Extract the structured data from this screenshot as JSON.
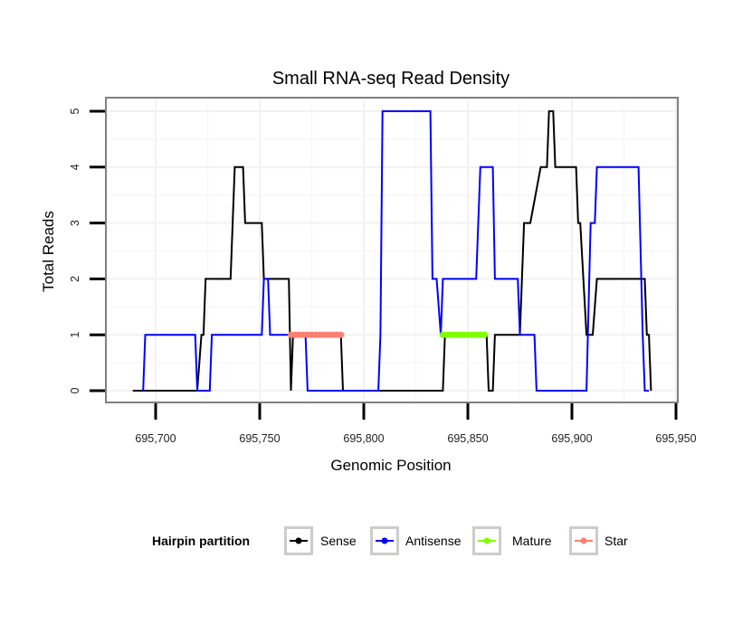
{
  "chart_data": {
    "type": "line",
    "title": "Small RNA-seq Read Density",
    "xlabel": "Genomic Position",
    "ylabel": "Total Reads",
    "xlim": [
      695650,
      695950
    ],
    "ylim": [
      -0.2,
      5.2
    ],
    "x_ticks": [
      695700,
      695750,
      695800,
      695850,
      695900,
      695950
    ],
    "x_tick_labels": [
      "695,700",
      "695,750",
      "695,800",
      "695,850",
      "695,900",
      "695,950"
    ],
    "y_ticks": [
      0,
      1,
      2,
      3,
      4,
      5
    ],
    "y_tick_labels": [
      "0",
      "1",
      "2",
      "3",
      "4",
      "5"
    ],
    "grid": true,
    "legend": {
      "title": "Hairpin partition",
      "placement": "bottom",
      "entries": [
        {
          "name": "Sense",
          "color": "#000000"
        },
        {
          "name": "Antisense",
          "color": "#0000ff"
        },
        {
          "name": "Mature",
          "color": "#7fff00"
        },
        {
          "name": "Star",
          "color": "#fa8072"
        }
      ]
    },
    "series": [
      {
        "name": "Sense",
        "color": "#000000",
        "style": "line",
        "x": [
          695689,
          695720,
          695722,
          695723,
          695724,
          695736,
          695738,
          695742,
          695743,
          695751,
          695752,
          695764,
          695765,
          695766,
          695789,
          695790,
          695838,
          695839,
          695859,
          695860,
          695862,
          695863,
          695875,
          695877,
          695880,
          695885,
          695888,
          695889,
          695891,
          695892,
          695902,
          695903,
          695904,
          695907,
          695910,
          695912,
          695935,
          695936,
          695937,
          695938
        ],
        "y": [
          0,
          0,
          1,
          1,
          2,
          2,
          4,
          4,
          3,
          3,
          2,
          2,
          0,
          1,
          1,
          0,
          0,
          1,
          1,
          0,
          0,
          1,
          1,
          3,
          3,
          4,
          4,
          5,
          5,
          4,
          4,
          3,
          3,
          1,
          1,
          2,
          2,
          1,
          1,
          0
        ]
      },
      {
        "name": "Antisense",
        "color": "#0000ff",
        "style": "line",
        "x": [
          695694,
          695695,
          695719,
          695720,
          695726,
          695727,
          695751,
          695752,
          695754,
          695755,
          695763,
          695772,
          695773,
          695807,
          695808,
          695809,
          695832,
          695833,
          695835,
          695837,
          695838,
          695854,
          695856,
          695862,
          695863,
          695874,
          695875,
          695882,
          695883,
          695907,
          695909,
          695911,
          695912,
          695932,
          695934,
          695935,
          695937
        ],
        "y": [
          0,
          1,
          1,
          0,
          0,
          1,
          1,
          2,
          2,
          1,
          1,
          1,
          0,
          0,
          1,
          5,
          5,
          2,
          2,
          1,
          2,
          2,
          4,
          4,
          2,
          2,
          1,
          1,
          0,
          0,
          3,
          3,
          4,
          4,
          1,
          0,
          0
        ]
      },
      {
        "name": "Mature",
        "color": "#7fff00",
        "style": "points",
        "x": [
          695838,
          695840,
          695842,
          695844,
          695846,
          695848,
          695850,
          695852,
          695854,
          695856,
          695858
        ],
        "y": [
          1,
          1,
          1,
          1,
          1,
          1,
          1,
          1,
          1,
          1,
          1
        ]
      },
      {
        "name": "Star",
        "color": "#fa8072",
        "style": "points",
        "x": [
          695765,
          695767,
          695769,
          695771,
          695773,
          695775,
          695777,
          695779,
          695781,
          695783,
          695785,
          695787,
          695789
        ],
        "y": [
          1,
          1,
          1,
          1,
          1,
          1,
          1,
          1,
          1,
          1,
          1,
          1,
          1
        ]
      }
    ]
  }
}
